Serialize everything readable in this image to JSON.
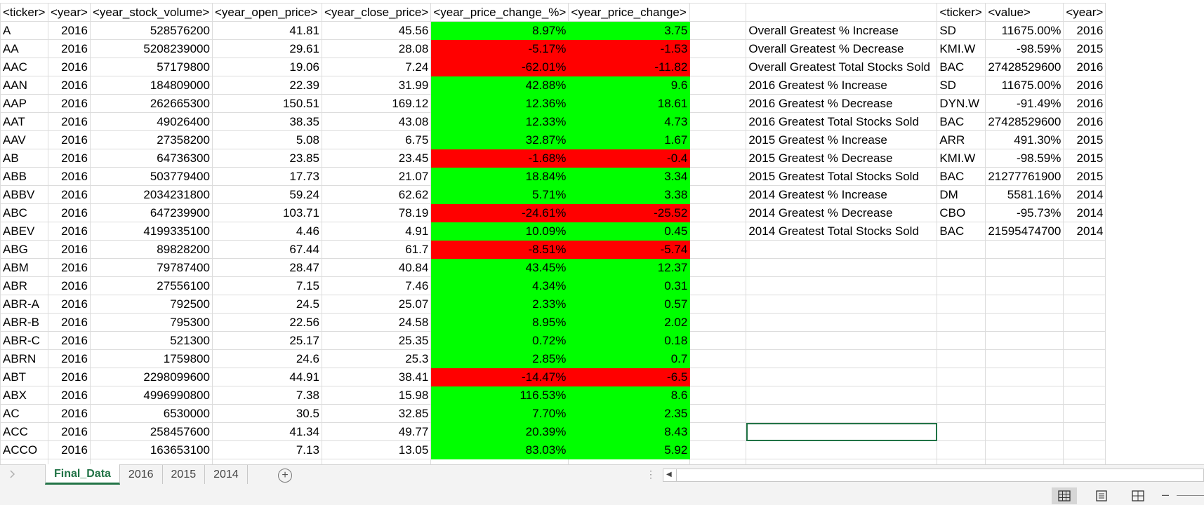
{
  "sheet": {
    "headers": [
      "<ticker>",
      "<year>",
      "<year_stock_volume>",
      "<year_open_price>",
      "<year_close_price>",
      "<year_price_change_%>",
      "<year_price_change>",
      "",
      "",
      "<ticker>",
      "<value>",
      "<year>"
    ],
    "rows": [
      [
        "A",
        "2016",
        "528576200",
        "41.81",
        "45.56",
        "8.97%",
        "3.75"
      ],
      [
        "AA",
        "2016",
        "5208239000",
        "29.61",
        "28.08",
        "-5.17%",
        "-1.53"
      ],
      [
        "AAC",
        "2016",
        "57179800",
        "19.06",
        "7.24",
        "-62.01%",
        "-11.82"
      ],
      [
        "AAN",
        "2016",
        "184809000",
        "22.39",
        "31.99",
        "42.88%",
        "9.6"
      ],
      [
        "AAP",
        "2016",
        "262665300",
        "150.51",
        "169.12",
        "12.36%",
        "18.61"
      ],
      [
        "AAT",
        "2016",
        "49026400",
        "38.35",
        "43.08",
        "12.33%",
        "4.73"
      ],
      [
        "AAV",
        "2016",
        "27358200",
        "5.08",
        "6.75",
        "32.87%",
        "1.67"
      ],
      [
        "AB",
        "2016",
        "64736300",
        "23.85",
        "23.45",
        "-1.68%",
        "-0.4"
      ],
      [
        "ABB",
        "2016",
        "503779400",
        "17.73",
        "21.07",
        "18.84%",
        "3.34"
      ],
      [
        "ABBV",
        "2016",
        "2034231800",
        "59.24",
        "62.62",
        "5.71%",
        "3.38"
      ],
      [
        "ABC",
        "2016",
        "647239900",
        "103.71",
        "78.19",
        "-24.61%",
        "-25.52"
      ],
      [
        "ABEV",
        "2016",
        "4199335100",
        "4.46",
        "4.91",
        "10.09%",
        "0.45"
      ],
      [
        "ABG",
        "2016",
        "89828200",
        "67.44",
        "61.7",
        "-8.51%",
        "-5.74"
      ],
      [
        "ABM",
        "2016",
        "79787400",
        "28.47",
        "40.84",
        "43.45%",
        "12.37"
      ],
      [
        "ABR",
        "2016",
        "27556100",
        "7.15",
        "7.46",
        "4.34%",
        "0.31"
      ],
      [
        "ABR-A",
        "2016",
        "792500",
        "24.5",
        "25.07",
        "2.33%",
        "0.57"
      ],
      [
        "ABR-B",
        "2016",
        "795300",
        "22.56",
        "24.58",
        "8.95%",
        "2.02"
      ],
      [
        "ABR-C",
        "2016",
        "521300",
        "25.17",
        "25.35",
        "0.72%",
        "0.18"
      ],
      [
        "ABRN",
        "2016",
        "1759800",
        "24.6",
        "25.3",
        "2.85%",
        "0.7"
      ],
      [
        "ABT",
        "2016",
        "2298099600",
        "44.91",
        "38.41",
        "-14.47%",
        "-6.5"
      ],
      [
        "ABX",
        "2016",
        "4996990800",
        "7.38",
        "15.98",
        "116.53%",
        "8.6"
      ],
      [
        "AC",
        "2016",
        "6530000",
        "30.5",
        "32.85",
        "7.70%",
        "2.35"
      ],
      [
        "ACC",
        "2016",
        "258457600",
        "41.34",
        "49.77",
        "20.39%",
        "8.43"
      ],
      [
        "ACCO",
        "2016",
        "163653100",
        "7.13",
        "13.05",
        "83.03%",
        "5.92"
      ]
    ],
    "summary": [
      [
        "Overall Greatest % Increase",
        "SD",
        "11675.00%",
        "2016"
      ],
      [
        "Overall Greatest % Decrease",
        "KMI.W",
        "-98.59%",
        "2015"
      ],
      [
        "Overall Greatest Total Stocks Sold",
        "BAC",
        "27428529600",
        "2016"
      ],
      [
        "2016 Greatest % Increase",
        "SD",
        "11675.00%",
        "2016"
      ],
      [
        "2016 Greatest % Decrease",
        "DYN.W",
        "-91.49%",
        "2016"
      ],
      [
        "2016 Greatest Total Stocks Sold",
        "BAC",
        "27428529600",
        "2016"
      ],
      [
        "2015 Greatest % Increase",
        "ARR",
        "491.30%",
        "2015"
      ],
      [
        "2015 Greatest % Decrease",
        "KMI.W",
        "-98.59%",
        "2015"
      ],
      [
        "2015 Greatest Total Stocks Sold",
        "BAC",
        "21277761900",
        "2015"
      ],
      [
        "2014 Greatest % Increase",
        "DM",
        "5581.16%",
        "2014"
      ],
      [
        "2014 Greatest % Decrease",
        "CBO",
        "-95.73%",
        "2014"
      ],
      [
        "2014 Greatest Total Stocks Sold",
        "BAC",
        "21595474700",
        "2014"
      ]
    ],
    "colors": {
      "positive": "#00ff00",
      "negative": "#ff0000"
    }
  },
  "tabs": {
    "items": [
      "Final_Data",
      "2016",
      "2015",
      "2014"
    ],
    "active": "Final_Data",
    "add_icon": "plus-circle-icon"
  },
  "statusbar": {
    "views": [
      "normal-view-icon",
      "page-layout-icon",
      "page-break-preview-icon"
    ],
    "zoom_minus": "–"
  }
}
